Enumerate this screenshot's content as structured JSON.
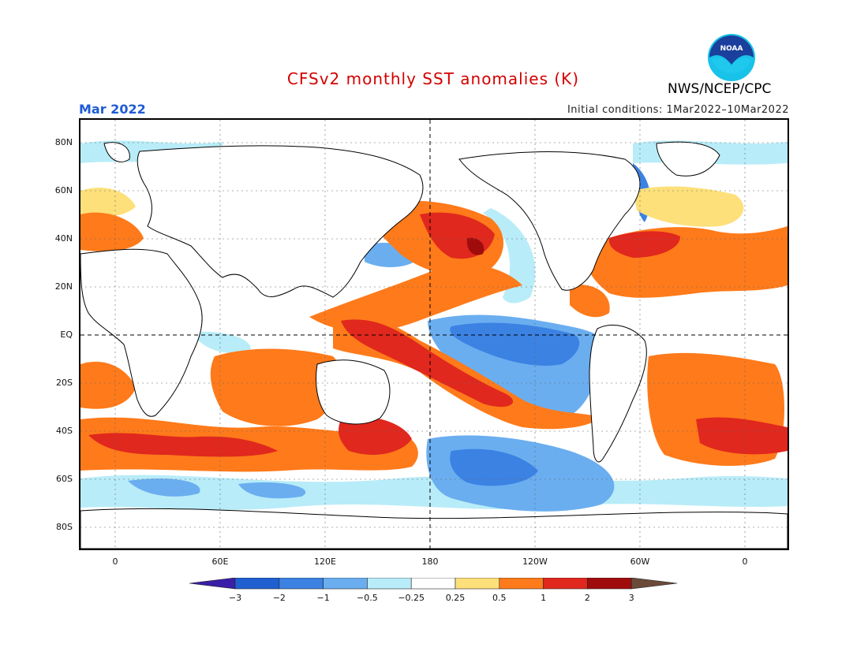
{
  "title": "CFSv2 monthly SST anomalies (K)",
  "period": "Mar 2022",
  "initial_conditions": "Initial conditions: 1Mar2022–10Mar2022",
  "agency": "NWS/NCEP/CPC",
  "logo_text": "NOAA",
  "lat_labels": [
    "80N",
    "60N",
    "40N",
    "20N",
    "EQ",
    "20S",
    "40S",
    "60S",
    "80S"
  ],
  "lon_labels": [
    "0",
    "60E",
    "120E",
    "180",
    "120W",
    "60W",
    "0"
  ],
  "colorbar": {
    "labels": [
      "−3",
      "−2",
      "−1",
      "−0.5",
      "−0.25",
      "0.25",
      "0.5",
      "1",
      "2",
      "3"
    ],
    "colors": [
      "#3a1ea8",
      "#1f5fd0",
      "#3b82e3",
      "#6aaef0",
      "#b8ecf8",
      "#ffffff",
      "#fde07a",
      "#ff7a1a",
      "#e0281e",
      "#a00c0c",
      "#6b4a3a"
    ]
  },
  "palette": {
    "warm_light": "#fde07a",
    "warm_med": "#ff7a1a",
    "warm_strong": "#e0281e",
    "warm_extreme": "#a00c0c",
    "cool_light": "#b8ecf8",
    "cool_med": "#6aaef0",
    "cool_strong": "#3b82e3",
    "cool_extreme": "#1f5fd0"
  }
}
